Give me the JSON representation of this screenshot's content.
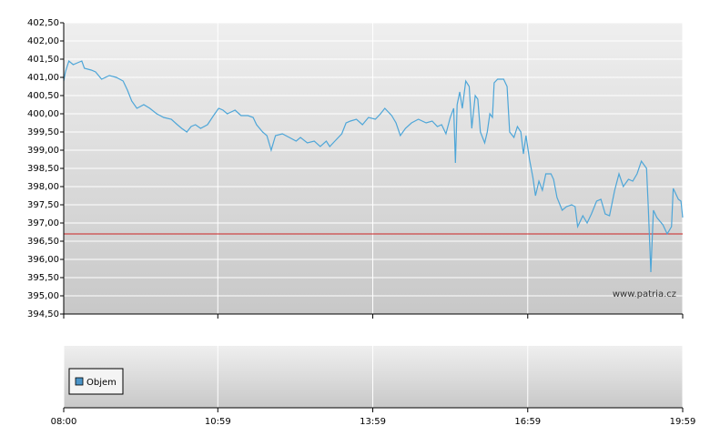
{
  "chart_data": {
    "type": "line",
    "x": [
      "08:00",
      "08:02",
      "08:06",
      "08:11",
      "08:16",
      "08:21",
      "08:24",
      "08:32",
      "08:37",
      "08:44",
      "08:53",
      "09:01",
      "09:09",
      "09:14",
      "09:19",
      "09:25",
      "09:33",
      "09:40",
      "09:48",
      "09:56",
      "10:05",
      "10:12",
      "10:17",
      "10:23",
      "10:28",
      "10:33",
      "10:39",
      "10:47",
      "10:54",
      "11:00",
      "11:05",
      "11:10",
      "11:19",
      "11:26",
      "11:34",
      "11:40",
      "11:44",
      "11:51",
      "11:56",
      "12:01",
      "12:06",
      "12:14",
      "12:22",
      "12:30",
      "12:35",
      "12:43",
      "12:51",
      "12:58",
      "13:05",
      "13:09",
      "13:15",
      "13:23",
      "13:28",
      "13:33",
      "13:40",
      "13:47",
      "13:54",
      "14:02",
      "14:08",
      "14:13",
      "14:21",
      "14:26",
      "14:31",
      "14:37",
      "14:44",
      "14:52",
      "15:01",
      "15:08",
      "15:14",
      "15:19",
      "15:24",
      "15:29",
      "15:33",
      "15:35",
      "15:37",
      "15:40",
      "15:43",
      "15:47",
      "15:51",
      "15:54",
      "15:58",
      "16:01",
      "16:04",
      "16:09",
      "16:12",
      "16:15",
      "16:18",
      "16:20",
      "16:24",
      "16:31",
      "16:35",
      "16:38",
      "16:43",
      "16:47",
      "16:51",
      "16:54",
      "16:57",
      "17:01",
      "17:05",
      "17:08",
      "17:12",
      "17:16",
      "17:20",
      "17:26",
      "17:29",
      "17:33",
      "17:39",
      "17:44",
      "17:50",
      "17:54",
      "17:57",
      "18:03",
      "18:08",
      "18:13",
      "18:19",
      "18:24",
      "18:29",
      "18:34",
      "18:40",
      "18:45",
      "18:50",
      "18:56",
      "19:01",
      "19:06",
      "19:11",
      "19:17",
      "19:19",
      "19:22",
      "19:25",
      "19:29",
      "19:36",
      "19:41",
      "19:46",
      "19:48",
      "19:54",
      "19:57",
      "19:59"
    ],
    "values": [
      400.9,
      401.15,
      401.45,
      401.35,
      401.4,
      401.45,
      401.25,
      401.2,
      401.15,
      400.95,
      401.05,
      401.0,
      400.9,
      400.65,
      400.35,
      400.15,
      400.25,
      400.15,
      400.0,
      399.9,
      399.85,
      399.7,
      399.6,
      399.5,
      399.65,
      399.7,
      399.6,
      399.7,
      399.95,
      400.15,
      400.1,
      400.0,
      400.1,
      399.95,
      399.95,
      399.9,
      399.7,
      399.5,
      399.4,
      399.0,
      399.4,
      399.45,
      399.35,
      399.25,
      399.35,
      399.2,
      399.25,
      399.1,
      399.25,
      399.1,
      399.25,
      399.45,
      399.75,
      399.8,
      399.85,
      399.7,
      399.9,
      399.85,
      400.0,
      400.15,
      399.95,
      399.75,
      399.4,
      399.6,
      399.75,
      399.85,
      399.75,
      399.8,
      399.65,
      399.7,
      399.45,
      399.9,
      400.15,
      398.65,
      400.25,
      400.6,
      400.15,
      400.9,
      400.75,
      399.6,
      400.5,
      400.4,
      399.5,
      399.2,
      399.5,
      400.0,
      399.9,
      400.85,
      400.95,
      400.95,
      400.75,
      399.5,
      399.35,
      399.65,
      399.5,
      398.9,
      399.4,
      398.75,
      398.25,
      397.75,
      398.15,
      397.9,
      398.35,
      398.35,
      398.2,
      397.7,
      397.35,
      397.45,
      397.5,
      397.45,
      396.9,
      397.2,
      397.0,
      397.25,
      397.6,
      397.65,
      397.25,
      397.2,
      397.9,
      398.35,
      398.0,
      398.2,
      398.15,
      398.35,
      398.7,
      398.5,
      397.45,
      395.65,
      397.35,
      397.15,
      396.95,
      396.7,
      396.9,
      397.95,
      397.65,
      397.6,
      397.15
    ],
    "color": "#4ea6d8",
    "xlim": [
      "08:00",
      "19:59"
    ],
    "xticks": [
      "08:00",
      "10:59",
      "13:59",
      "16:59",
      "19:59"
    ],
    "ylim": [
      394.5,
      402.5
    ],
    "yticks": [
      {
        "value": 394.5,
        "label": "394,50"
      },
      {
        "value": 395,
        "label": "395,00"
      },
      {
        "value": 395.5,
        "label": "395,50"
      },
      {
        "value": 396,
        "label": "396,00"
      },
      {
        "value": 396.5,
        "label": "396,50"
      },
      {
        "value": 397,
        "label": "397,00"
      },
      {
        "value": 397.5,
        "label": "397,50"
      },
      {
        "value": 398,
        "label": "398,00"
      },
      {
        "value": 398.5,
        "label": "398,50"
      },
      {
        "value": 399,
        "label": "399,00"
      },
      {
        "value": 399.5,
        "label": "399,50"
      },
      {
        "value": 400,
        "label": "400,00"
      },
      {
        "value": 400.5,
        "label": "400,50"
      },
      {
        "value": 401,
        "label": "401,00"
      },
      {
        "value": 401.5,
        "label": "401,50"
      },
      {
        "value": 402,
        "label": "402,00"
      },
      {
        "value": 402.5,
        "label": "402,50"
      }
    ],
    "grid": true,
    "reference_line": {
      "value": 396.7,
      "color": "#cc2222"
    },
    "watermark": "www.patria.cz",
    "volume_panel": {
      "legend": "Objem",
      "color": "#4a94c8"
    }
  }
}
